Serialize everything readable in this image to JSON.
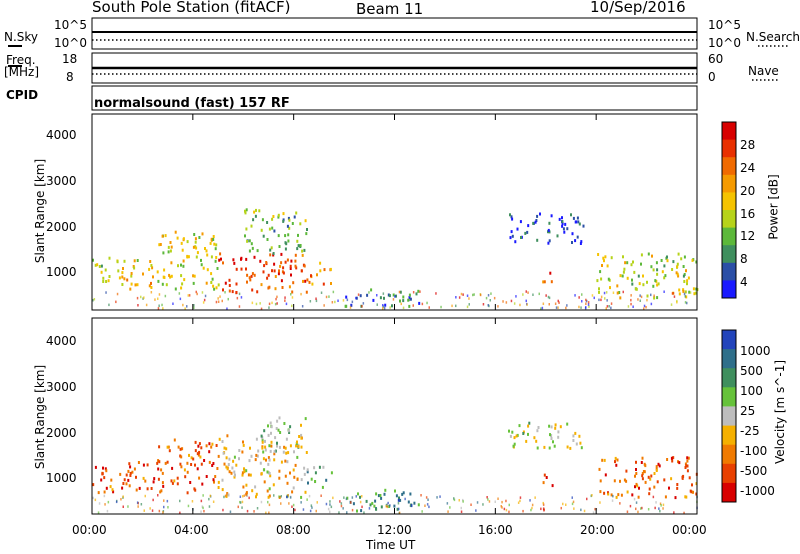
{
  "header": {
    "station": "South Pole Station (fitACF)",
    "beam": "Beam 11",
    "date": "10/Sep/2016"
  },
  "top_panel": {
    "nsky_label": "N.Sky",
    "nsearch_label": "N.Search",
    "log_hi": "10^5",
    "log_lo": "10^0",
    "freq_label": "Freq.",
    "freq_unit": "[MHz]",
    "freq_hi": "18",
    "freq_lo": "8",
    "nave_label": "Nave",
    "nave_hi": "60",
    "nave_lo": "0",
    "cpid_label": "CPID",
    "cpid_value": "normalsound (fast) 157 RF"
  },
  "chart_data": [
    {
      "type": "heatmap",
      "title": "Power",
      "ylabel": "Slant Range [km]",
      "xlabel": "Time UT",
      "x_ticks": [
        "00:00",
        "04:00",
        "08:00",
        "12:00",
        "16:00",
        "20:00",
        "00:00"
      ],
      "y_ticks": [
        "1000",
        "2000",
        "3000",
        "4000"
      ],
      "ylim": [
        200,
        4600
      ],
      "colorbar_label": "Power [dB]",
      "colorbar_ticks": [
        "4",
        "8",
        "12",
        "16",
        "20",
        "24",
        "28"
      ],
      "colorbar_colors": [
        "#1a1aff",
        "#2b4fa6",
        "#3f8f5e",
        "#5cb83a",
        "#b6d31a",
        "#f5c300",
        "#f59a00",
        "#f06a00",
        "#e83000",
        "#d80000"
      ],
      "regions": [
        {
          "t": [
            0.0,
            0.5
          ],
          "r": [
            800,
            1400
          ],
          "level": 0.45
        },
        {
          "t": [
            0.5,
            2.5
          ],
          "r": [
            700,
            1400
          ],
          "level": 0.55
        },
        {
          "t": [
            2.5,
            5.0
          ],
          "r": [
            700,
            2000
          ],
          "level": 0.5
        },
        {
          "t": [
            5.0,
            8.5
          ],
          "r": [
            600,
            1500
          ],
          "level": 0.85
        },
        {
          "t": [
            6.0,
            8.5
          ],
          "r": [
            1500,
            2500
          ],
          "level": 0.35
        },
        {
          "t": [
            8.5,
            9.5
          ],
          "r": [
            800,
            1300
          ],
          "level": 0.7
        },
        {
          "t": [
            10.0,
            13.0
          ],
          "r": [
            300,
            700
          ],
          "level": 0.25
        },
        {
          "t": [
            16.5,
            19.5
          ],
          "r": [
            1700,
            2400
          ],
          "level": 0.1
        },
        {
          "t": [
            17.8,
            18.4
          ],
          "r": [
            850,
            1150
          ],
          "level": 0.8
        },
        {
          "t": [
            20.0,
            24.0
          ],
          "r": [
            500,
            1500
          ],
          "level": 0.45
        }
      ]
    },
    {
      "type": "heatmap",
      "title": "Velocity",
      "ylabel": "Slant Range [km]",
      "xlabel": "Time UT",
      "x_ticks": [
        "00:00",
        "04:00",
        "08:00",
        "12:00",
        "16:00",
        "20:00",
        "00:00"
      ],
      "y_ticks": [
        "1000",
        "2000",
        "3000",
        "4000"
      ],
      "ylim": [
        200,
        4600
      ],
      "colorbar_label": "Velocity [m s^-1]",
      "colorbar_ticks": [
        "1000",
        "500",
        "100",
        "25",
        "-25",
        "-100",
        "-500",
        "-1000"
      ],
      "colorbar_colors": [
        "#2244bb",
        "#2f6f8a",
        "#3f8f5e",
        "#66c23a",
        "#bdbdbd",
        "#f5b000",
        "#f07a00",
        "#e84000",
        "#d80000"
      ],
      "regions": [
        {
          "t": [
            0.0,
            2.5
          ],
          "r": [
            700,
            1400
          ],
          "level": 0.8
        },
        {
          "t": [
            2.5,
            5.0
          ],
          "r": [
            700,
            1900
          ],
          "level": 0.78
        },
        {
          "t": [
            5.0,
            8.5
          ],
          "r": [
            600,
            2000
          ],
          "level": 0.6
        },
        {
          "t": [
            6.5,
            8.5
          ],
          "r": [
            1600,
            2400
          ],
          "level": 0.45
        },
        {
          "t": [
            8.5,
            9.5
          ],
          "r": [
            800,
            1300
          ],
          "level": 0.3
        },
        {
          "t": [
            10.0,
            13.0
          ],
          "r": [
            300,
            800
          ],
          "level": 0.25
        },
        {
          "t": [
            16.5,
            19.5
          ],
          "r": [
            1700,
            2300
          ],
          "level": 0.5
        },
        {
          "t": [
            17.8,
            18.4
          ],
          "r": [
            850,
            1150
          ],
          "level": 0.82
        },
        {
          "t": [
            20.0,
            24.0
          ],
          "r": [
            600,
            1500
          ],
          "level": 0.78
        }
      ]
    }
  ]
}
